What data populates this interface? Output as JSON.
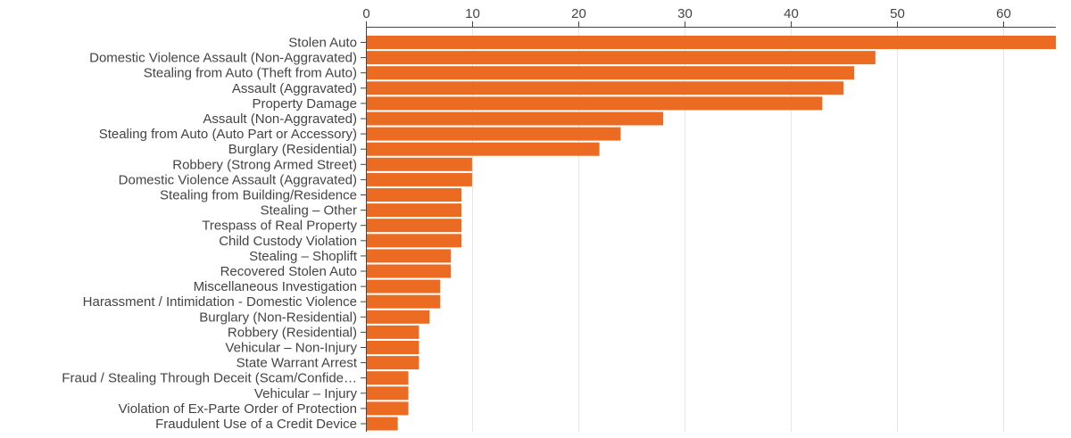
{
  "chart_data": {
    "type": "bar",
    "orientation": "horizontal",
    "categories": [
      "Stolen Auto",
      "Domestic Violence Assault (Non-Aggravated)",
      "Stealing from Auto (Theft from Auto)",
      "Assault (Aggravated)",
      "Property Damage",
      "Assault (Non-Aggravated)",
      "Stealing from Auto (Auto Part or Accessory)",
      "Burglary (Residential)",
      "Robbery (Strong Armed Street)",
      "Domestic Violence Assault (Aggravated)",
      "Stealing from Building/Residence",
      "Stealing – Other",
      "Trespass of Real Property",
      "Child Custody Violation",
      "Stealing – Shoplift",
      "Recovered Stolen Auto",
      "Miscellaneous Investigation",
      "Harassment / Intimidation - Domestic Violence",
      "Burglary (Non-Residential)",
      "Robbery (Residential)",
      "Vehicular – Non-Injury",
      "State Warrant Arrest",
      "Fraud / Stealing Through Deceit (Scam/Confide…",
      "Vehicular – Injury",
      "Violation of Ex-Parte Order of Protection",
      "Fraudulent Use of a Credit Device"
    ],
    "values": [
      65,
      48,
      46,
      45,
      43,
      28,
      24,
      22,
      10,
      10,
      9,
      9,
      9,
      9,
      8,
      8,
      7,
      7,
      6,
      5,
      5,
      5,
      4,
      4,
      4,
      3
    ],
    "xlim": [
      0,
      65
    ],
    "xticks": [
      0,
      10,
      20,
      30,
      40,
      50,
      60
    ],
    "x_axis_position": "top",
    "grid": true,
    "legend": "none",
    "title": "",
    "xlabel": "",
    "ylabel": "",
    "colors": {
      "bar": "#ec6b23",
      "grid": "#e6e6e6",
      "axis": "#444444",
      "text": "#444444"
    }
  }
}
